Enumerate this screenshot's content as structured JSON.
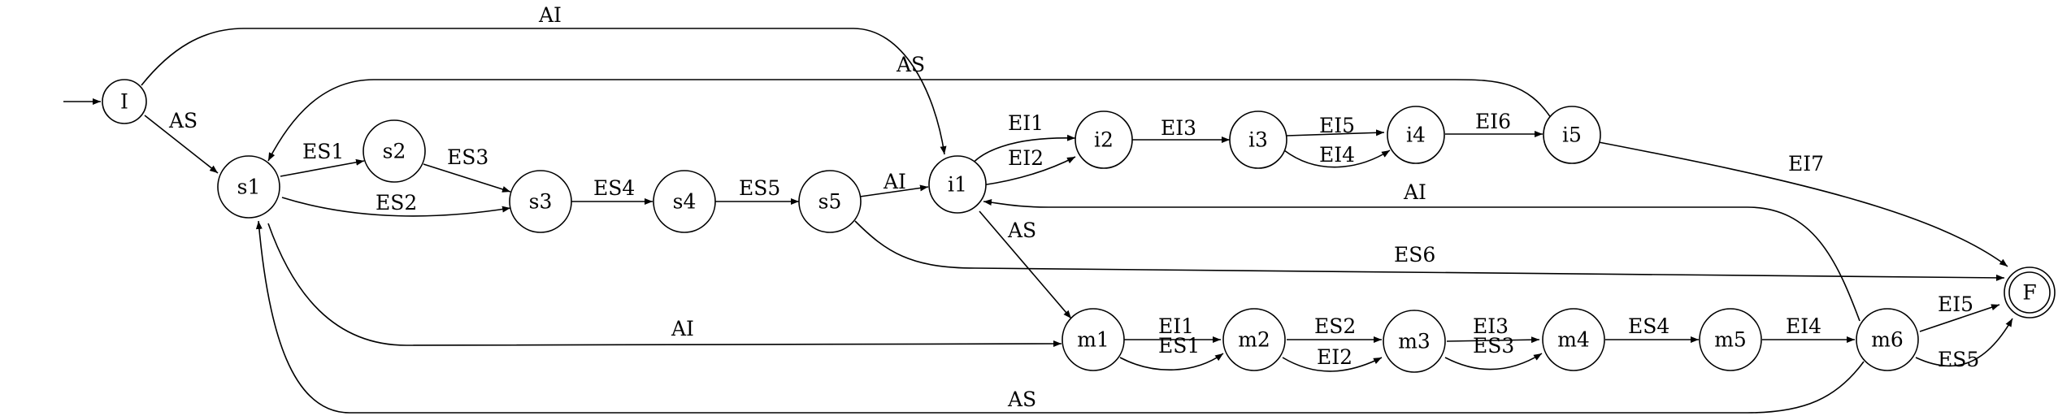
{
  "diagram": {
    "start_marker": "initial-arrow",
    "nodes": [
      {
        "id": "I",
        "label": "I"
      },
      {
        "id": "s1",
        "label": "s1"
      },
      {
        "id": "s2",
        "label": "s2"
      },
      {
        "id": "s3",
        "label": "s3"
      },
      {
        "id": "s4",
        "label": "s4"
      },
      {
        "id": "s5",
        "label": "s5"
      },
      {
        "id": "i1",
        "label": "i1"
      },
      {
        "id": "i2",
        "label": "i2"
      },
      {
        "id": "i3",
        "label": "i3"
      },
      {
        "id": "i4",
        "label": "i4"
      },
      {
        "id": "i5",
        "label": "i5"
      },
      {
        "id": "m1",
        "label": "m1"
      },
      {
        "id": "m2",
        "label": "m2"
      },
      {
        "id": "m3",
        "label": "m3"
      },
      {
        "id": "m4",
        "label": "m4"
      },
      {
        "id": "m5",
        "label": "m5"
      },
      {
        "id": "m6",
        "label": "m6"
      },
      {
        "id": "F",
        "label": "F",
        "accepting": true
      }
    ],
    "edges": [
      {
        "from": "I",
        "to": "i1",
        "label": "AI"
      },
      {
        "from": "I",
        "to": "s1",
        "label": "AS"
      },
      {
        "from": "i5",
        "to": "s1",
        "label": "AS"
      },
      {
        "from": "s1",
        "to": "s2",
        "label": "ES1"
      },
      {
        "from": "s2",
        "to": "s3",
        "label": "ES3"
      },
      {
        "from": "s1",
        "to": "s3",
        "label": "ES2"
      },
      {
        "from": "s3",
        "to": "s4",
        "label": "ES4"
      },
      {
        "from": "s4",
        "to": "s5",
        "label": "ES5"
      },
      {
        "from": "s5",
        "to": "i1",
        "label": "AI"
      },
      {
        "from": "i1",
        "to": "i2",
        "label": "EI1"
      },
      {
        "from": "i1",
        "to": "i2",
        "label": "EI2"
      },
      {
        "from": "i2",
        "to": "i3",
        "label": "EI3"
      },
      {
        "from": "i3",
        "to": "i4",
        "label": "EI5"
      },
      {
        "from": "i3",
        "to": "i4",
        "label": "EI4"
      },
      {
        "from": "i4",
        "to": "i5",
        "label": "EI6"
      },
      {
        "from": "i5",
        "to": "F",
        "label": "EI7"
      },
      {
        "from": "m6",
        "to": "i1",
        "label": "AI"
      },
      {
        "from": "s5",
        "to": "F",
        "label": "ES6"
      },
      {
        "from": "i1",
        "to": "m1",
        "label": "AS"
      },
      {
        "from": "s1",
        "to": "m1",
        "label": "AI"
      },
      {
        "from": "m1",
        "to": "m2",
        "label": "EI1"
      },
      {
        "from": "m1",
        "to": "m2",
        "label": "ES1"
      },
      {
        "from": "m2",
        "to": "m3",
        "label": "ES2"
      },
      {
        "from": "m2",
        "to": "m3",
        "label": "EI2"
      },
      {
        "from": "m3",
        "to": "m4",
        "label": "EI3"
      },
      {
        "from": "m3",
        "to": "m4",
        "label": "ES3"
      },
      {
        "from": "m4",
        "to": "m5",
        "label": "ES4"
      },
      {
        "from": "m5",
        "to": "m6",
        "label": "EI4"
      },
      {
        "from": "m6",
        "to": "F",
        "label": "EI5"
      },
      {
        "from": "m6",
        "to": "F",
        "label": "ES5"
      },
      {
        "from": "m6",
        "to": "s1",
        "label": "AS"
      }
    ]
  }
}
